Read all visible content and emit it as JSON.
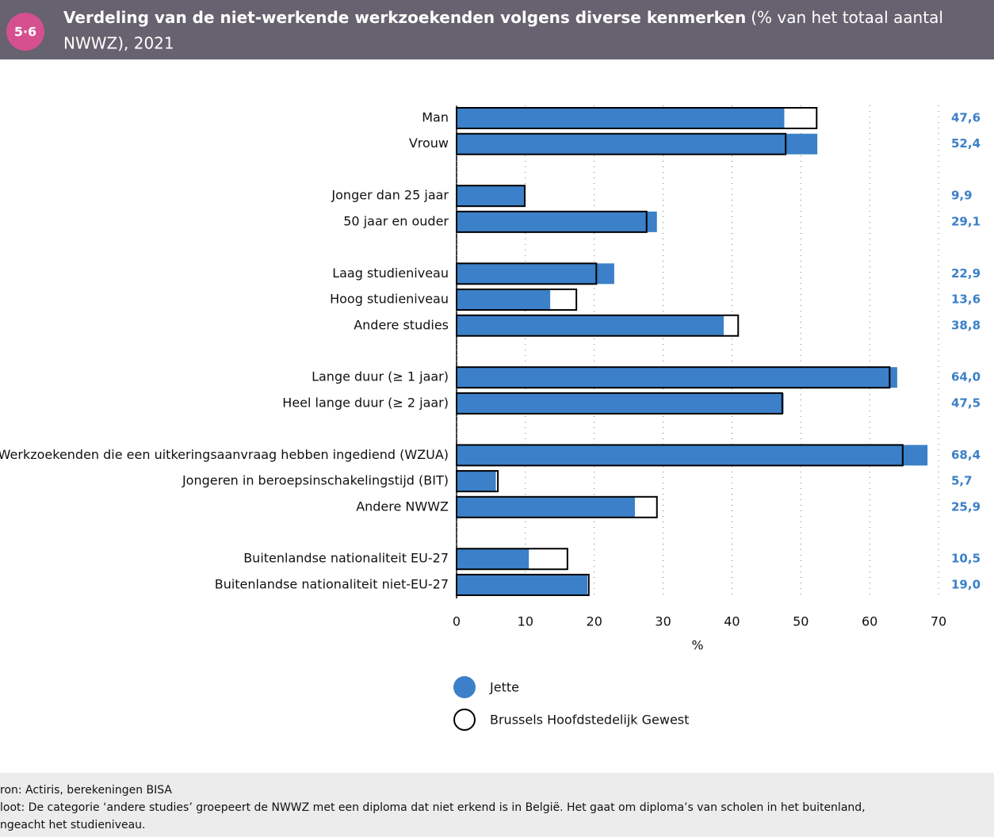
{
  "header": {
    "badge": "5·6",
    "title": "Verdeling van de niet-werkende werkzoekenden volgens diverse kenmerken",
    "subtitle_part1": "(% van het totaal aantal",
    "subtitle_part2": "NWWZ), 2021"
  },
  "chart_data": {
    "type": "hbar",
    "categories": [
      "Man",
      "Vrouw",
      null,
      "Jonger dan 25 jaar",
      "50 jaar en ouder",
      null,
      "Laag studieniveau",
      "Hoog studieniveau",
      "Andere studies",
      null,
      "Lange duur (≥ 1 jaar)",
      "Heel lange duur (≥ 2 jaar)",
      null,
      "Werkzoekenden die een uitkeringsaanvraag hebben ingediend (WZUA)",
      "Jongeren in beroepsinschakelingstijd (BIT)",
      "Andere NWWZ",
      null,
      "Buitenlandse nationaliteit EU-27",
      "Buitenlandse nationaliteit niet-EU-27"
    ],
    "series": [
      {
        "name": "Jette",
        "color": "#3b80c8",
        "values": [
          47.6,
          52.4,
          null,
          9.9,
          29.1,
          null,
          22.9,
          13.6,
          38.8,
          null,
          64.0,
          47.5,
          null,
          68.4,
          5.7,
          25.9,
          null,
          10.5,
          19.0
        ],
        "value_labels": [
          "47,6",
          "52,4",
          null,
          "9,9",
          "29,1",
          null,
          "22,9",
          "13,6",
          "38,8",
          null,
          "64,0",
          "47,5",
          null,
          "68,4",
          "5,7",
          "25,9",
          null,
          "10,5",
          "19,0"
        ]
      },
      {
        "name": "Brussels Hoofdstedelijk Gewest",
        "color": "#000000",
        "values": [
          52.3,
          47.8,
          null,
          9.9,
          27.6,
          null,
          20.3,
          17.4,
          40.9,
          null,
          62.9,
          47.3,
          null,
          64.8,
          6.0,
          29.1,
          null,
          16.1,
          19.2
        ]
      }
    ],
    "xlim": [
      0,
      70
    ],
    "xticks": [
      0,
      10,
      20,
      30,
      40,
      50,
      60,
      70
    ],
    "xlabel": "%",
    "grid": true
  },
  "footer": {
    "source": "ron: Actiris, berekeningen BISA",
    "note1": "loot: De categorie ‘andere studies’ groepeert de NWWZ met een diploma dat niet erkend is in België. Het gaat om diploma’s van scholen in het buitenland,",
    "note2": "ngeacht het studieniveau."
  }
}
